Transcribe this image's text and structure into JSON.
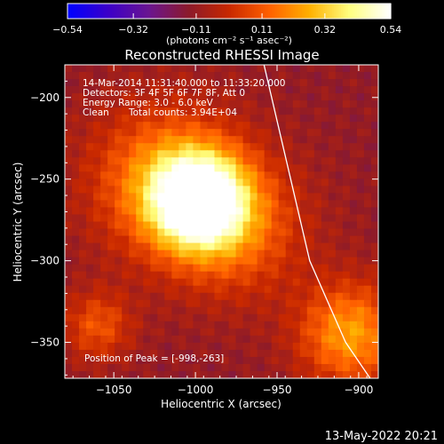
{
  "chart_data": {
    "type": "heatmap",
    "title": "Reconstructed RHESSI Image",
    "xlabel": "Heliocentric X (arcsec)",
    "ylabel": "Heliocentric Y (arcsec)",
    "xlim": [
      -1080,
      -888
    ],
    "ylim": [
      -372,
      -180
    ],
    "x_ticks": [
      -1050,
      -1000,
      -950,
      -900
    ],
    "y_ticks": [
      -350,
      -300,
      -250,
      -200
    ],
    "x_tick_labels": [
      "−1050",
      "−1000",
      "−950",
      "−900"
    ],
    "y_tick_labels": [
      "−350",
      "−300",
      "−250",
      "−200"
    ],
    "colorbar": {
      "min": -0.54,
      "max": 0.54,
      "ticks": [
        -0.54,
        -0.32,
        -0.11,
        0.11,
        0.32,
        0.54
      ],
      "tick_labels": [
        "−0.54",
        "−0.32",
        "−0.11",
        "0.11",
        "0.32",
        "0.54"
      ],
      "unit_label": "(photons cm⁻² s⁻¹ asec⁻²)",
      "colors": [
        "#0000ff",
        "#3c00c8",
        "#6a1590",
        "#8c1a2a",
        "#c82800",
        "#ff6000",
        "#ffb000",
        "#ffff80",
        "#ffffff"
      ]
    },
    "sources": [
      {
        "x": -998,
        "y": -263,
        "peak": 0.54,
        "sigma": 20
      },
      {
        "x": -1020,
        "y": -250,
        "peak": 0.22,
        "sigma": 32
      },
      {
        "x": -975,
        "y": -280,
        "peak": 0.15,
        "sigma": 30
      },
      {
        "x": -905,
        "y": -345,
        "peak": 0.28,
        "sigma": 22
      },
      {
        "x": -1060,
        "y": -340,
        "peak": 0.12,
        "sigma": 15
      }
    ],
    "background": -0.12,
    "limb": [
      [
        -958,
        -180
      ],
      [
        -944,
        -240
      ],
      [
        -930,
        -300
      ],
      [
        -908,
        -350
      ],
      [
        -893,
        -372
      ]
    ],
    "peak_position": [
      -998,
      -263
    ]
  },
  "annotations": {
    "date_range": "14-Mar-2014 11:31:40.000 to 11:33:20.000",
    "detectors": "Detectors: 3F 4F 5F 6F 7F 8F, Att 0",
    "energy": "Energy Range: 3.0 - 6.0 keV",
    "clean_label": "Clean",
    "total_counts": "Total counts: 3.94E+04",
    "peak_text": "Position of Peak = [-998,-263]"
  },
  "footer": {
    "timestamp": "13-May-2022 20:21"
  }
}
